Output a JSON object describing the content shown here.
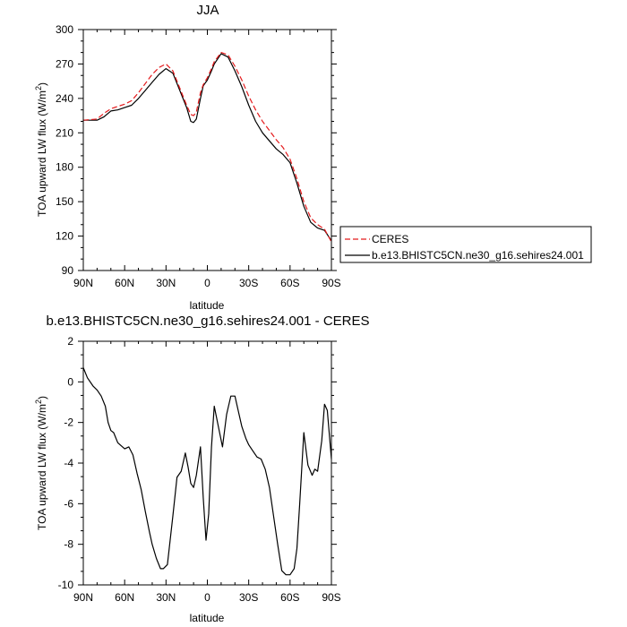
{
  "chart_data": [
    {
      "type": "line",
      "title": "JJA",
      "xlabel": "latitude",
      "ylabel": "TOA upward LW flux (W/m",
      "ylabel_sup": "2",
      "ylabel_end": ")",
      "xlim": [
        90,
        -90
      ],
      "ylim": [
        90,
        300
      ],
      "x_ticks": [
        90,
        60,
        30,
        0,
        -30,
        -60,
        -90
      ],
      "x_tick_labels": [
        "90N",
        "60N",
        "30N",
        "0",
        "30S",
        "60S",
        "90S"
      ],
      "y_ticks": [
        90,
        120,
        150,
        180,
        210,
        240,
        270,
        300
      ],
      "y_tick_labels": [
        "90",
        "120",
        "150",
        "180",
        "210",
        "240",
        "270",
        "300"
      ],
      "legend_position": "right",
      "series": [
        {
          "name": "CERES",
          "color": "#e41a1c",
          "dash": "dashed",
          "x": [
            90,
            80,
            75,
            70,
            65,
            60,
            55,
            50,
            45,
            40,
            35,
            30,
            25,
            20,
            15,
            12,
            10,
            8,
            5,
            3,
            0,
            -3,
            -5,
            -10,
            -15,
            -20,
            -25,
            -30,
            -35,
            -40,
            -45,
            -50,
            -55,
            -60,
            -65,
            -70,
            -75,
            -80,
            -85,
            -90
          ],
          "y": [
            221,
            222,
            227,
            231,
            233,
            235,
            238,
            245,
            253,
            261,
            267,
            270,
            264,
            249,
            234,
            226,
            225,
            228,
            245,
            252,
            258,
            266,
            272,
            280,
            278,
            268,
            256,
            242,
            230,
            220,
            212,
            204,
            197,
            187,
            170,
            150,
            136,
            130,
            126,
            115
          ]
        },
        {
          "name": "b.e13.BHISTC5CN.ne30_g16.sehires24.001",
          "color": "#000000",
          "dash": "solid",
          "x": [
            90,
            80,
            75,
            70,
            65,
            60,
            55,
            50,
            45,
            40,
            35,
            30,
            25,
            20,
            15,
            12,
            10,
            8,
            5,
            3,
            0,
            -3,
            -5,
            -10,
            -15,
            -20,
            -25,
            -30,
            -35,
            -40,
            -45,
            -50,
            -55,
            -60,
            -65,
            -70,
            -75,
            -80,
            -85,
            -90
          ],
          "y": [
            221,
            221,
            224,
            229,
            230,
            232,
            234,
            240,
            247,
            254,
            261,
            266,
            262,
            247,
            232,
            220,
            219,
            222,
            240,
            251,
            256,
            264,
            270,
            279,
            276,
            264,
            250,
            234,
            220,
            210,
            203,
            196,
            191,
            184,
            166,
            146,
            132,
            127,
            125,
            116
          ]
        }
      ]
    },
    {
      "type": "line",
      "title": "b.e13.BHISTC5CN.ne30_g16.sehires24.001 - CERES",
      "xlabel": "latitude",
      "ylabel": "TOA upward LW flux (W/m",
      "ylabel_sup": "2",
      "ylabel_end": ")",
      "xlim": [
        90,
        -90
      ],
      "ylim": [
        -10,
        2
      ],
      "x_ticks": [
        90,
        60,
        30,
        0,
        -30,
        -60,
        -90
      ],
      "x_tick_labels": [
        "90N",
        "60N",
        "30N",
        "0",
        "30S",
        "60S",
        "90S"
      ],
      "y_ticks": [
        -10,
        -8,
        -6,
        -4,
        -2,
        0,
        2
      ],
      "y_tick_labels": [
        "-10",
        "-8",
        "-6",
        "-4",
        "-2",
        "0",
        "2"
      ],
      "series": [
        {
          "name": "",
          "color": "#000000",
          "dash": "solid",
          "x": [
            90,
            87,
            83,
            80,
            77,
            74,
            72,
            70,
            68,
            65,
            60,
            57,
            54,
            51,
            48,
            45,
            42,
            40,
            37,
            34,
            32,
            29,
            25,
            22,
            19,
            16,
            14,
            12,
            10,
            8,
            5,
            3,
            1,
            -1,
            -3,
            -5,
            -8,
            -11,
            -14,
            -17,
            -20,
            -23,
            -25,
            -28,
            -30,
            -33,
            -36,
            -39,
            -42,
            -45,
            -48,
            -51,
            -54,
            -57,
            -60,
            -63,
            -65,
            -67,
            -70,
            -73,
            -76,
            -78,
            -80,
            -83,
            -85,
            -87,
            -90
          ],
          "y": [
            0.7,
            0.2,
            -0.2,
            -0.4,
            -0.7,
            -1.2,
            -2.0,
            -2.4,
            -2.5,
            -3.0,
            -3.3,
            -3.2,
            -3.6,
            -4.5,
            -5.3,
            -6.4,
            -7.4,
            -8.0,
            -8.7,
            -9.2,
            -9.2,
            -9.0,
            -6.6,
            -4.7,
            -4.4,
            -3.5,
            -4.2,
            -5.0,
            -5.2,
            -4.6,
            -3.2,
            -5.7,
            -7.8,
            -6.5,
            -3.2,
            -1.2,
            -2.2,
            -3.2,
            -1.6,
            -0.7,
            -0.7,
            -1.6,
            -2.2,
            -2.8,
            -3.1,
            -3.4,
            -3.7,
            -3.8,
            -4.3,
            -5.2,
            -6.6,
            -8.0,
            -9.3,
            -9.5,
            -9.5,
            -9.2,
            -8.2,
            -6.0,
            -2.5,
            -4.1,
            -4.6,
            -4.3,
            -4.4,
            -2.9,
            -1.1,
            -1.4,
            -3.8
          ]
        }
      ]
    }
  ]
}
